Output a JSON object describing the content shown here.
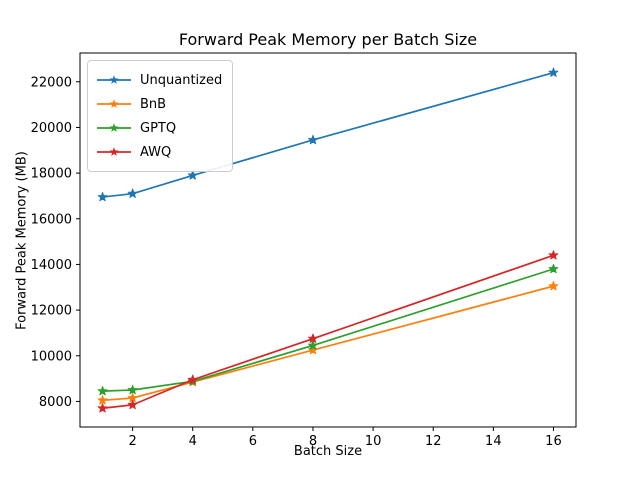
{
  "figure": {
    "title": "Forward Peak Memory per Batch Size",
    "xlabel": "Batch Size",
    "ylabel": "Forward Peak Memory (MB)"
  },
  "chart_data": {
    "type": "line",
    "title": "Forward Peak Memory per Batch Size",
    "xlabel": "Batch Size",
    "ylabel": "Forward Peak Memory (MB)",
    "x": [
      1,
      2,
      4,
      8,
      16
    ],
    "series": [
      {
        "name": "Unquantized",
        "color": "#1f77b4",
        "values": [
          16950,
          17100,
          17900,
          19450,
          22400
        ]
      },
      {
        "name": "BnB",
        "color": "#ff7f0e",
        "values": [
          8050,
          8150,
          8850,
          10250,
          13050
        ]
      },
      {
        "name": "GPTQ",
        "color": "#2ca02c",
        "values": [
          8450,
          8500,
          8880,
          10450,
          13800
        ]
      },
      {
        "name": "AWQ",
        "color": "#d62728",
        "values": [
          7700,
          7850,
          8950,
          10750,
          14400
        ]
      }
    ],
    "marker": "star",
    "grid": false,
    "legend_position": "upper left",
    "xticks": [
      2,
      4,
      6,
      8,
      10,
      12,
      14,
      16
    ],
    "yticks": [
      8000,
      10000,
      12000,
      14000,
      16000,
      18000,
      20000,
      22000
    ],
    "xlim": [
      0.25,
      16.75
    ],
    "ylim": [
      6880,
      23260
    ],
    "axis_color": "#000000",
    "background": "#ffffff"
  }
}
